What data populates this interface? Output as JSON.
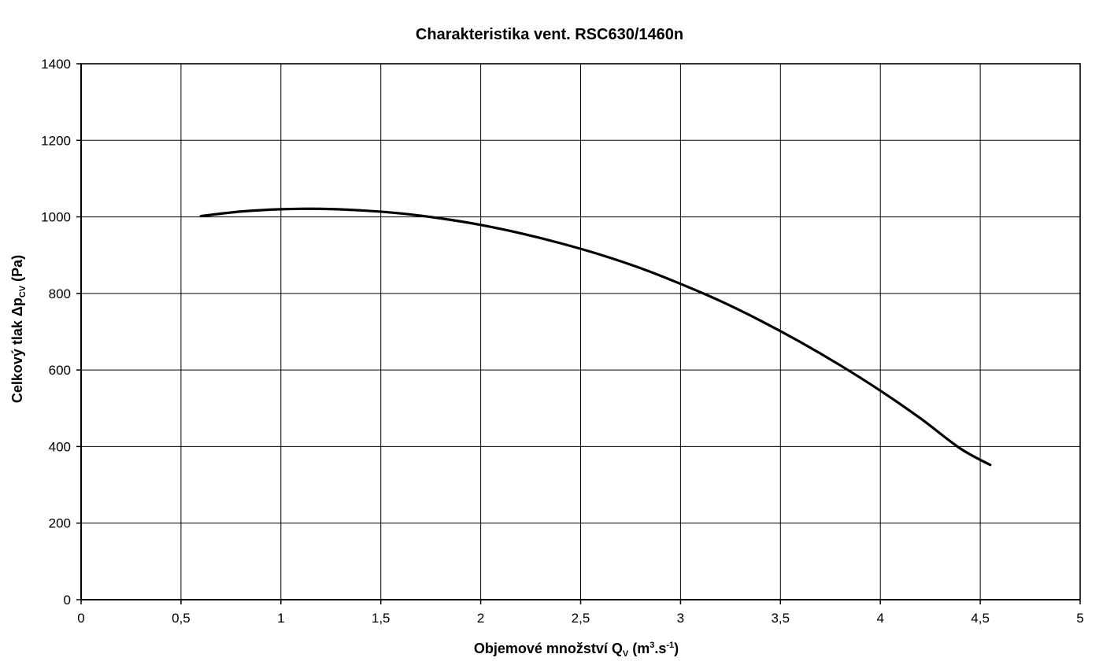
{
  "chart_data": {
    "type": "line",
    "title": "Charakteristika vent. RSC630/1460n",
    "xlabel": {
      "prefix": "Objemové množství Q",
      "sub": "V",
      "mid1": " (m",
      "sup1": "3",
      "mid2": ".s",
      "sup2": "-1",
      "suffix": ")"
    },
    "ylabel": {
      "prefix": "Celkový tlak  Δp",
      "sub": "CV",
      "suffix": " (Pa)"
    },
    "xlim": [
      0,
      5
    ],
    "ylim": [
      0,
      1400
    ],
    "xticks": [
      "0",
      "0,5",
      "1",
      "1,5",
      "2",
      "2,5",
      "3",
      "3,5",
      "4",
      "4,5",
      "5"
    ],
    "yticks": [
      "0",
      "200",
      "400",
      "600",
      "800",
      "1000",
      "1200",
      "1400"
    ],
    "grid": true,
    "series": [
      {
        "color": "#000000",
        "x": [
          0.6,
          0.8,
          1.0,
          1.2,
          1.4,
          1.6,
          1.8,
          2.0,
          2.2,
          2.4,
          2.6,
          2.8,
          3.0,
          3.2,
          3.4,
          3.6,
          3.8,
          4.0,
          4.2,
          4.4,
          4.55
        ],
        "y": [
          1002,
          1014,
          1020,
          1021,
          1017,
          1009,
          996,
          979,
          957,
          931,
          901,
          866,
          825,
          780,
          729,
          673,
          612,
          546,
          474,
          395,
          352
        ]
      }
    ]
  }
}
